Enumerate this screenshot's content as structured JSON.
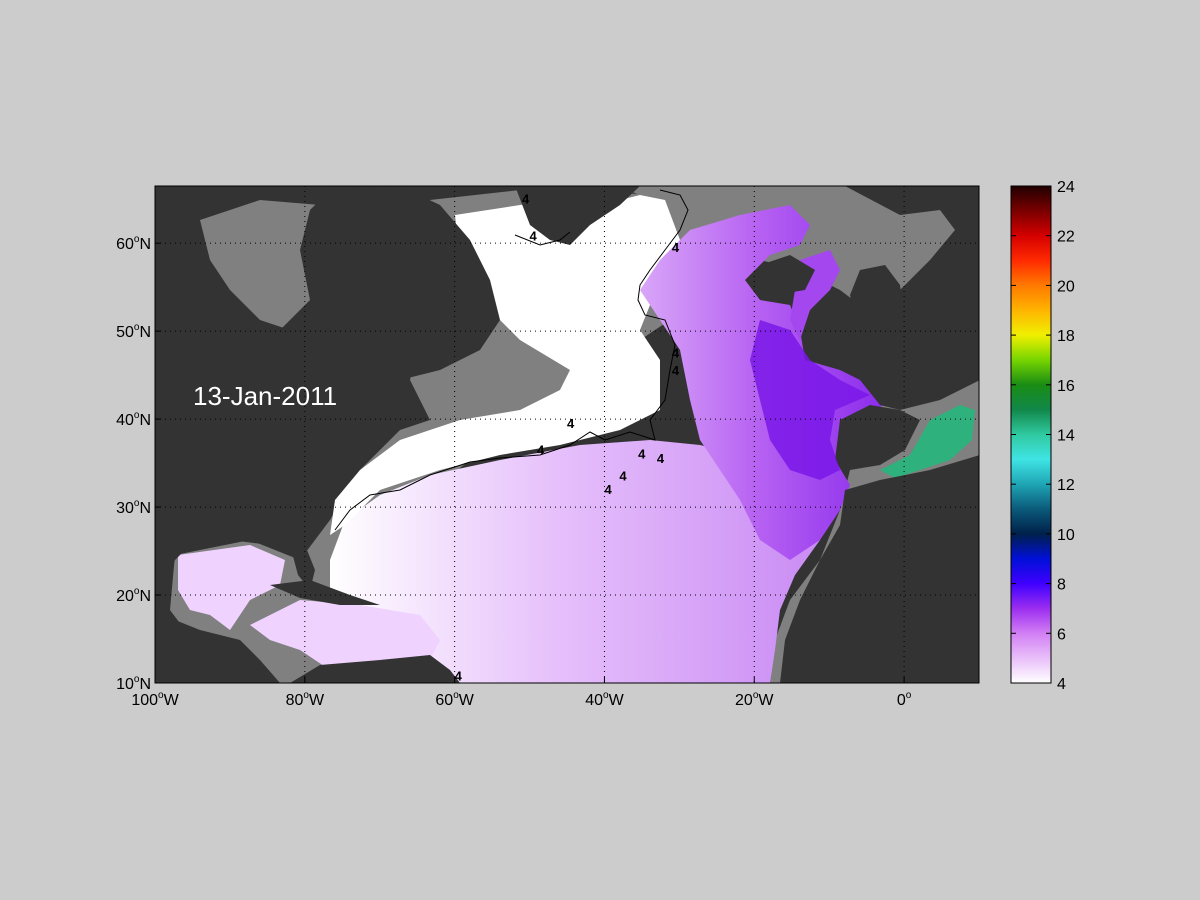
{
  "date_label": "13-Jan-2011",
  "map": {
    "lon_range": [
      -100,
      10
    ],
    "lat_range": [
      10,
      66.5
    ],
    "x_ticks": [
      {
        "value": -100,
        "label": "100",
        "hem": "W"
      },
      {
        "value": -80,
        "label": "80",
        "hem": "W"
      },
      {
        "value": -60,
        "label": "60",
        "hem": "W"
      },
      {
        "value": -40,
        "label": "40",
        "hem": "W"
      },
      {
        "value": -20,
        "label": "20",
        "hem": "W"
      },
      {
        "value": 0,
        "label": "0",
        "hem": ""
      }
    ],
    "y_ticks": [
      {
        "value": 10,
        "label": "10",
        "hem": "N"
      },
      {
        "value": 20,
        "label": "20",
        "hem": "N"
      },
      {
        "value": 30,
        "label": "30",
        "hem": "N"
      },
      {
        "value": 40,
        "label": "40",
        "hem": "N"
      },
      {
        "value": 50,
        "label": "50",
        "hem": "N"
      },
      {
        "value": 60,
        "label": "60",
        "hem": "N"
      }
    ],
    "contour_label": "4",
    "colors": {
      "land": "#333333",
      "shelf": "#808080",
      "ocean_min": "#ffffff",
      "ocean_light": "#f0d2ff",
      "ocean_mid": "#cf8af5",
      "ocean_strong": "#a447ee",
      "ocean_deep": "#7a17e8",
      "med": "#2fb17e"
    }
  },
  "colorbar": {
    "min": 4,
    "max": 24,
    "ticks": [
      "4",
      "6",
      "8",
      "10",
      "12",
      "14",
      "16",
      "18",
      "20",
      "22",
      "24"
    ],
    "stops": [
      {
        "v": 4,
        "c": "#ffffff"
      },
      {
        "v": 6,
        "c": "#d27ff4"
      },
      {
        "v": 7,
        "c": "#9b2ef0"
      },
      {
        "v": 8,
        "c": "#3f00ff"
      },
      {
        "v": 9,
        "c": "#0010d8"
      },
      {
        "v": 10,
        "c": "#00204a"
      },
      {
        "v": 11,
        "c": "#0b5a7a"
      },
      {
        "v": 12,
        "c": "#1fa5b5"
      },
      {
        "v": 13,
        "c": "#3fe4e4"
      },
      {
        "v": 14,
        "c": "#30c9a0"
      },
      {
        "v": 15,
        "c": "#11884a"
      },
      {
        "v": 16,
        "c": "#1a8c14"
      },
      {
        "v": 17,
        "c": "#77d500"
      },
      {
        "v": 18,
        "c": "#f0f000"
      },
      {
        "v": 19,
        "c": "#ffb400"
      },
      {
        "v": 20,
        "c": "#ff7a00"
      },
      {
        "v": 21,
        "c": "#ff2a00"
      },
      {
        "v": 22,
        "c": "#d40000"
      },
      {
        "v": 23,
        "c": "#7a0000"
      },
      {
        "v": 24,
        "c": "#200000"
      }
    ]
  }
}
